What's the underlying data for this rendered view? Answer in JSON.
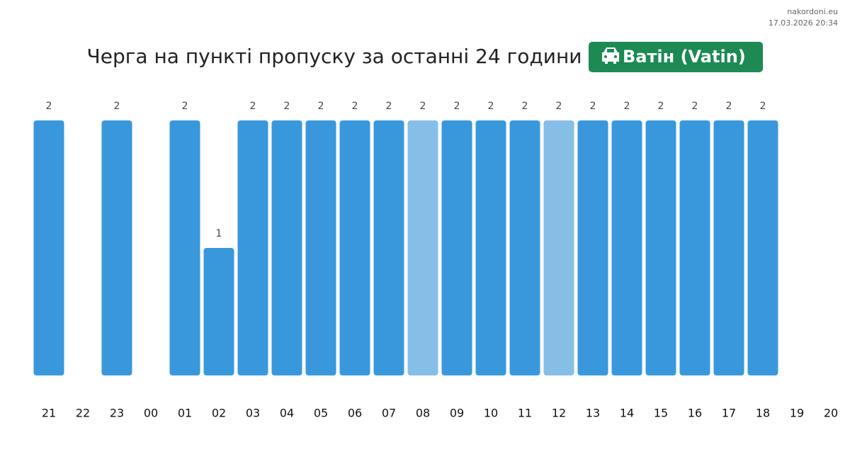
{
  "site": "nakordoni.eu",
  "timestamp": "17.03.2026 20:34",
  "chart_data": {
    "type": "bar",
    "title": "Черга на пункті пропуску за останні 24 години",
    "badge": "Ватін (Vatin)",
    "categories": [
      "21",
      "22",
      "23",
      "00",
      "01",
      "02",
      "03",
      "04",
      "05",
      "06",
      "07",
      "08",
      "09",
      "10",
      "11",
      "12",
      "13",
      "14",
      "15",
      "16",
      "17",
      "18",
      "19",
      "20"
    ],
    "values": [
      2,
      null,
      2,
      null,
      2,
      1,
      2,
      2,
      2,
      2,
      2,
      2,
      2,
      2,
      2,
      2,
      2,
      2,
      2,
      2,
      2,
      2,
      null,
      null
    ],
    "colors": [
      "#3898db",
      null,
      "#3898db",
      null,
      "#3898db",
      "#3898db",
      "#3898db",
      "#3898db",
      "#3898db",
      "#3898db",
      "#3898db",
      "#85bfe7",
      "#3898db",
      "#3898db",
      "#3898db",
      "#85bfe7",
      "#3898db",
      "#3898db",
      "#3898db",
      "#3898db",
      "#3898db",
      "#3898db",
      null,
      null
    ],
    "ylim": [
      0,
      2
    ]
  }
}
